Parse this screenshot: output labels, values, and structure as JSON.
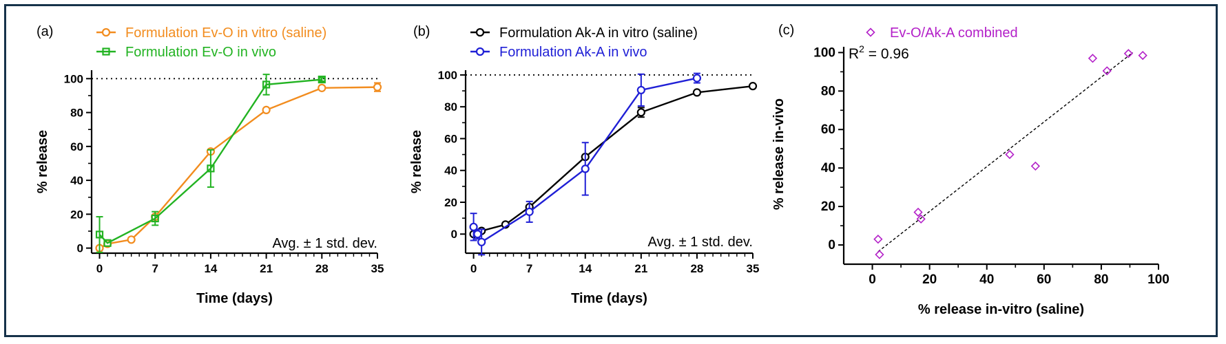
{
  "chart_data": [
    {
      "type": "line",
      "panel_label": "(a)",
      "xlabel": "Time (days)",
      "ylabel": "% release",
      "xlim": [
        -1,
        35
      ],
      "ylim": [
        -3,
        105
      ],
      "xticks": [
        0,
        7,
        14,
        21,
        28,
        35
      ],
      "yticks": [
        0,
        20,
        40,
        60,
        80,
        100
      ],
      "reference_line": 100,
      "annotation": "Avg. ± 1 std. dev.",
      "legend_position": "top-left",
      "series": [
        {
          "name": "Formulation Ev-O in vitro (saline)",
          "color": "#f28c1e",
          "marker": "circle",
          "x": [
            0,
            1,
            4,
            7,
            14,
            21,
            28,
            35
          ],
          "y": [
            0,
            2.5,
            5,
            18.5,
            57,
            81.5,
            94.5,
            95
          ],
          "err": [
            0,
            0,
            0,
            0,
            0,
            0,
            0,
            2.5
          ]
        },
        {
          "name": "Formulation Ev-O in vivo",
          "color": "#22b322",
          "marker": "square",
          "x": [
            0,
            1,
            7,
            14,
            21,
            28
          ],
          "y": [
            8,
            3,
            17.5,
            47,
            96.5,
            99.5
          ],
          "err": [
            10.5,
            0,
            4,
            11,
            6,
            1
          ]
        }
      ]
    },
    {
      "type": "line",
      "panel_label": "(b)",
      "xlabel": "Time (days)",
      "ylabel": "% release",
      "xlim": [
        -1,
        35
      ],
      "ylim": [
        -12,
        103
      ],
      "xticks": [
        0,
        7,
        14,
        21,
        28,
        35
      ],
      "yticks": [
        0,
        20,
        40,
        60,
        80,
        100
      ],
      "reference_line": 100,
      "annotation": "Avg. ± 1 std. dev.",
      "legend_position": "top-left",
      "series": [
        {
          "name": "Formulation Ak-A in vitro (saline)",
          "color": "#000000",
          "marker": "circle",
          "x": [
            0,
            1,
            4,
            7,
            14,
            21,
            28,
            35
          ],
          "y": [
            0,
            2,
            6,
            17,
            48.5,
            76.5,
            89,
            93
          ],
          "err": [
            0,
            0,
            0,
            0,
            0,
            3,
            0,
            0
          ]
        },
        {
          "name": "Formulation Ak-A in vivo",
          "color": "#1f1fd6",
          "marker": "circle",
          "x": [
            0,
            0.5,
            1,
            7,
            14,
            21,
            28
          ],
          "y": [
            4.5,
            0,
            -5,
            14,
            41,
            90.5,
            98
          ],
          "err": [
            8.5,
            3,
            8,
            6.5,
            16.5,
            10,
            3
          ]
        }
      ]
    },
    {
      "type": "scatter",
      "panel_label": "(c)",
      "xlabel": "% release in-vitro (saline)",
      "ylabel": "% release in-vivo",
      "xlim": [
        -10,
        100
      ],
      "ylim": [
        -10,
        103
      ],
      "xticks": [
        0,
        20,
        40,
        60,
        80,
        100
      ],
      "yticks": [
        0,
        20,
        40,
        60,
        80,
        100
      ],
      "r2_prefix": "R",
      "r2_sup": "2",
      "r2_suffix": " = 0.96",
      "legend_position": "top",
      "series": [
        {
          "name": "Ev-O/Ak-A combined",
          "color": "#b31fc8",
          "marker": "diamond",
          "x": [
            2,
            2.5,
            16,
            17,
            48,
            57,
            77,
            82,
            89.5,
            94.5
          ],
          "y": [
            3,
            -5,
            17,
            13.5,
            47,
            41,
            97,
            90.5,
            99.5,
            98.5
          ]
        }
      ],
      "fit_line": {
        "x": [
          2,
          91
        ],
        "y": [
          -3.5,
          100
        ]
      }
    }
  ]
}
